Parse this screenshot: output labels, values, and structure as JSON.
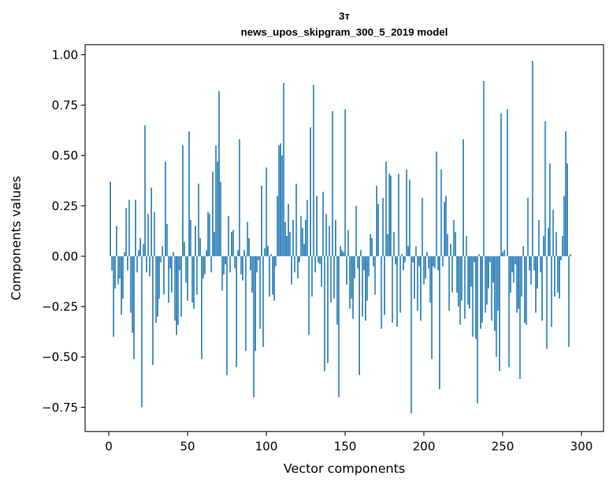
{
  "chart_data": {
    "type": "bar",
    "title_line1": "3т",
    "title_line2": "news_upos_skipgram_300_5_2019 model",
    "xlabel": "Vector components",
    "ylabel": "Components values",
    "xlim": [
      -15,
      314
    ],
    "ylim": [
      -0.87,
      1.05
    ],
    "xticks": [
      0,
      50,
      100,
      150,
      200,
      250,
      300
    ],
    "yticks": [
      -0.75,
      -0.5,
      -0.25,
      0.0,
      0.25,
      0.5,
      0.75,
      1.0
    ],
    "xtick_labels": [
      "0",
      "50",
      "100",
      "150",
      "200",
      "250",
      "300"
    ],
    "ytick_labels": [
      "−0.75",
      "−0.50",
      "−0.25",
      "0.00",
      "0.25",
      "0.50",
      "0.75",
      "1.00"
    ],
    "bar_color": "#1f77b4",
    "grid": false,
    "values": [
      0.0,
      0.37,
      -0.07,
      -0.4,
      -0.16,
      0.15,
      -0.14,
      -0.11,
      -0.29,
      -0.21,
      0.02,
      0.24,
      -0.07,
      0.28,
      -0.28,
      -0.38,
      -0.51,
      0.28,
      -0.08,
      0.03,
      0.09,
      -0.75,
      0.06,
      0.65,
      -0.08,
      0.21,
      -0.1,
      0.34,
      -0.54,
      0.22,
      -0.33,
      -0.3,
      -0.21,
      -0.03,
      0.05,
      -0.19,
      0.47,
      0.16,
      -0.23,
      -0.06,
      -0.18,
      0.02,
      -0.32,
      -0.39,
      -0.34,
      -0.07,
      -0.3,
      0.55,
      0.07,
      -0.13,
      -0.22,
      0.62,
      0.18,
      -0.23,
      -0.26,
      0.15,
      -0.19,
      0.36,
      0.09,
      -0.51,
      -0.11,
      -0.09,
      0.03,
      0.22,
      0.21,
      -0.08,
      0.42,
      0.12,
      0.55,
      0.47,
      0.82,
      0.37,
      -0.17,
      -0.09,
      -0.04,
      -0.59,
      0.2,
      -0.08,
      0.12,
      0.13,
      -0.06,
      -0.55,
      0.03,
      0.58,
      -0.09,
      -0.12,
      0.03,
      -0.47,
      0.17,
      0.09,
      -0.07,
      -0.18,
      -0.7,
      -0.47,
      -0.08,
      -0.02,
      -0.36,
      0.35,
      -0.45,
      0.04,
      0.44,
      0.05,
      -0.2,
      0.01,
      -0.19,
      -0.22,
      -0.05,
      0.3,
      0.55,
      0.56,
      0.5,
      0.86,
      0.17,
      0.1,
      0.26,
      0.12,
      -0.14,
      0.18,
      -0.08,
      0.36,
      -0.11,
      -0.03,
      0.2,
      0.14,
      0.06,
      0.18,
      0.28,
      -0.39,
      0.64,
      -0.2,
      0.85,
      -0.08,
      0.3,
      -0.03,
      -0.04,
      -0.15,
      0.32,
      -0.57,
      0.21,
      -0.53,
      0.15,
      -0.23,
      0.72,
      -0.21,
      0.18,
      -0.34,
      -0.7,
      0.05,
      0.03,
      0.02,
      0.73,
      -0.14,
      0.13,
      -0.26,
      -0.21,
      -0.31,
      -0.11,
      0.25,
      -0.06,
      -0.59,
      0.03,
      -0.3,
      -0.07,
      -0.32,
      -0.22,
      -0.1,
      0.11,
      0.09,
      -0.05,
      -0.19,
      0.35,
      0.26,
      0.0,
      -0.36,
      0.29,
      -0.29,
      0.47,
      0.11,
      0.41,
      0.4,
      -0.33,
      0.12,
      -0.04,
      -0.35,
      0.41,
      -0.28,
      0.01,
      -0.07,
      -0.03,
      0.43,
      0.05,
      0.38,
      -0.78,
      -0.03,
      -0.21,
      0.05,
      -0.27,
      -0.05,
      -0.32,
      0.29,
      -0.14,
      -0.11,
      0.02,
      -0.06,
      -0.23,
      -0.51,
      -0.05,
      -0.06,
      0.52,
      -0.07,
      -0.66,
      0.43,
      -0.05,
      0.27,
      0.3,
      0.11,
      -0.27,
      0.06,
      -0.18,
      0.18,
      0.12,
      -0.18,
      -0.25,
      -0.34,
      -0.22,
      0.58,
      -0.31,
      0.1,
      -0.24,
      -0.26,
      -0.15,
      -0.4,
      -0.03,
      -0.41,
      -0.73,
      0.01,
      -0.36,
      -0.33,
      0.87,
      -0.28,
      -0.24,
      -0.16,
      -0.03,
      -0.32,
      -0.13,
      -0.37,
      -0.5,
      -0.27,
      -0.57,
      0.71,
      0.02,
      0.03,
      0.0,
      0.73,
      -0.55,
      -0.18,
      -0.08,
      -0.13,
      -0.04,
      -0.28,
      -0.26,
      -0.61,
      -0.2,
      0.05,
      -0.33,
      -0.34,
      0.29,
      -0.07,
      -0.14,
      0.97,
      -0.07,
      -0.28,
      -0.16,
      0.18,
      -0.08,
      -0.32,
      0.1,
      0.67,
      -0.46,
      0.14,
      0.46,
      -0.35,
      0.23,
      -0.2,
      0.12,
      -0.18,
      -0.21,
      -0.02,
      0.1,
      0.3,
      0.62,
      0.46,
      -0.45,
      0.01
    ]
  }
}
